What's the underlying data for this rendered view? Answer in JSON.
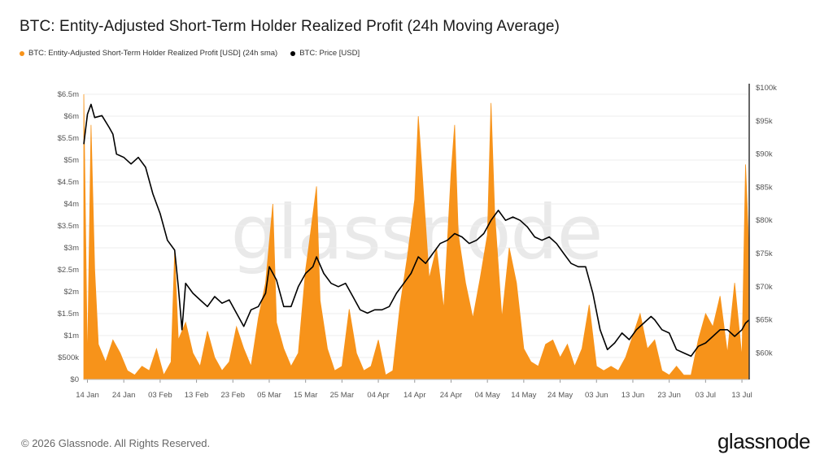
{
  "title": "BTC: Entity-Adjusted Short-Term Holder Realized Profit (24h Moving Average)",
  "footer": "© 2026 Glassnode. All Rights Reserved.",
  "brand": "glassnode",
  "watermark": "glassnode",
  "colors": {
    "profit": "#f7931a",
    "price": "#000000",
    "grid": "#eeeeee",
    "axis": "#333333"
  },
  "chart_data": {
    "type": "area",
    "legend_placement": "top-left",
    "grid": true,
    "x_ticks": [
      "14 Jan",
      "24 Jan",
      "03 Feb",
      "13 Feb",
      "23 Feb",
      "05 Mar",
      "15 Mar",
      "25 Mar",
      "04 Apr",
      "14 Apr",
      "24 Apr",
      "04 May",
      "14 May",
      "24 May",
      "03 Jun",
      "13 Jun",
      "23 Jun",
      "03 Jul",
      "13 Jul"
    ],
    "x_range": [
      "2026-01-13",
      "2026-07-15"
    ],
    "y_left": {
      "ticks": [
        "$0",
        "$500k",
        "$1m",
        "$1.5m",
        "$2m",
        "$2.5m",
        "$3m",
        "$3.5m",
        "$4m",
        "$4.5m",
        "$5m",
        "$5.5m",
        "$6m",
        "$6.5m"
      ],
      "range": [
        0,
        6500000
      ]
    },
    "y_right": {
      "ticks": [
        "$60k",
        "$65k",
        "$70k",
        "$75k",
        "$80k",
        "$85k",
        "$90k",
        "$95k",
        "$100k"
      ],
      "range": [
        56000,
        100000
      ]
    },
    "series": [
      {
        "name": "BTC: Entity-Adjusted Short-Term Holder Realized Profit [USD] (24h sma)",
        "axis": "left",
        "points": [
          [
            "2026-01-13",
            6500000
          ],
          [
            "2026-01-14",
            300000
          ],
          [
            "2026-01-15",
            5800000
          ],
          [
            "2026-01-16",
            2500000
          ],
          [
            "2026-01-17",
            800000
          ],
          [
            "2026-01-19",
            400000
          ],
          [
            "2026-01-21",
            900000
          ],
          [
            "2026-01-23",
            600000
          ],
          [
            "2026-01-25",
            200000
          ],
          [
            "2026-01-27",
            100000
          ],
          [
            "2026-01-29",
            300000
          ],
          [
            "2026-01-31",
            200000
          ],
          [
            "2026-02-02",
            700000
          ],
          [
            "2026-02-04",
            100000
          ],
          [
            "2026-02-06",
            400000
          ],
          [
            "2026-02-07",
            2900000
          ],
          [
            "2026-02-08",
            900000
          ],
          [
            "2026-02-10",
            1300000
          ],
          [
            "2026-02-12",
            600000
          ],
          [
            "2026-02-14",
            300000
          ],
          [
            "2026-02-16",
            1100000
          ],
          [
            "2026-02-18",
            500000
          ],
          [
            "2026-02-20",
            200000
          ],
          [
            "2026-02-22",
            400000
          ],
          [
            "2026-02-24",
            1200000
          ],
          [
            "2026-02-26",
            700000
          ],
          [
            "2026-02-28",
            300000
          ],
          [
            "2026-03-02",
            1400000
          ],
          [
            "2026-03-04",
            2200000
          ],
          [
            "2026-03-06",
            4000000
          ],
          [
            "2026-03-07",
            1300000
          ],
          [
            "2026-03-09",
            700000
          ],
          [
            "2026-03-11",
            300000
          ],
          [
            "2026-03-13",
            600000
          ],
          [
            "2026-03-15",
            2500000
          ],
          [
            "2026-03-16",
            3100000
          ],
          [
            "2026-03-18",
            4400000
          ],
          [
            "2026-03-19",
            1800000
          ],
          [
            "2026-03-21",
            700000
          ],
          [
            "2026-03-23",
            200000
          ],
          [
            "2026-03-25",
            300000
          ],
          [
            "2026-03-27",
            1600000
          ],
          [
            "2026-03-29",
            600000
          ],
          [
            "2026-03-31",
            200000
          ],
          [
            "2026-04-02",
            300000
          ],
          [
            "2026-04-04",
            900000
          ],
          [
            "2026-04-06",
            100000
          ],
          [
            "2026-04-08",
            200000
          ],
          [
            "2026-04-10",
            1700000
          ],
          [
            "2026-04-12",
            2800000
          ],
          [
            "2026-04-14",
            4100000
          ],
          [
            "2026-04-15",
            6000000
          ],
          [
            "2026-04-16",
            4800000
          ],
          [
            "2026-04-18",
            2300000
          ],
          [
            "2026-04-20",
            3000000
          ],
          [
            "2026-04-22",
            1600000
          ],
          [
            "2026-04-24",
            4700000
          ],
          [
            "2026-04-25",
            5800000
          ],
          [
            "2026-04-26",
            3300000
          ],
          [
            "2026-04-28",
            2200000
          ],
          [
            "2026-04-30",
            1400000
          ],
          [
            "2026-05-02",
            2300000
          ],
          [
            "2026-05-04",
            3300000
          ],
          [
            "2026-05-05",
            6300000
          ],
          [
            "2026-05-06",
            3800000
          ],
          [
            "2026-05-08",
            1400000
          ],
          [
            "2026-05-10",
            3000000
          ],
          [
            "2026-05-12",
            2200000
          ],
          [
            "2026-05-14",
            700000
          ],
          [
            "2026-05-16",
            400000
          ],
          [
            "2026-05-18",
            300000
          ],
          [
            "2026-05-20",
            800000
          ],
          [
            "2026-05-22",
            900000
          ],
          [
            "2026-05-24",
            500000
          ],
          [
            "2026-05-26",
            800000
          ],
          [
            "2026-05-28",
            300000
          ],
          [
            "2026-05-30",
            700000
          ],
          [
            "2026-06-01",
            1700000
          ],
          [
            "2026-06-03",
            300000
          ],
          [
            "2026-06-05",
            200000
          ],
          [
            "2026-06-07",
            300000
          ],
          [
            "2026-06-09",
            200000
          ],
          [
            "2026-06-11",
            500000
          ],
          [
            "2026-06-13",
            1000000
          ],
          [
            "2026-06-15",
            1500000
          ],
          [
            "2026-06-17",
            700000
          ],
          [
            "2026-06-19",
            900000
          ],
          [
            "2026-06-21",
            200000
          ],
          [
            "2026-06-23",
            100000
          ],
          [
            "2026-06-25",
            300000
          ],
          [
            "2026-06-27",
            100000
          ],
          [
            "2026-06-29",
            100000
          ],
          [
            "2026-07-01",
            900000
          ],
          [
            "2026-07-03",
            1500000
          ],
          [
            "2026-07-05",
            1200000
          ],
          [
            "2026-07-07",
            1900000
          ],
          [
            "2026-07-09",
            600000
          ],
          [
            "2026-07-11",
            2200000
          ],
          [
            "2026-07-13",
            500000
          ],
          [
            "2026-07-14",
            4900000
          ],
          [
            "2026-07-15",
            2800000
          ]
        ]
      },
      {
        "name": "BTC: Price [USD]",
        "axis": "right",
        "points": [
          [
            "2026-01-13",
            91500
          ],
          [
            "2026-01-14",
            96000
          ],
          [
            "2026-01-15",
            97500
          ],
          [
            "2026-01-16",
            95500
          ],
          [
            "2026-01-18",
            95800
          ],
          [
            "2026-01-20",
            94000
          ],
          [
            "2026-01-21",
            93000
          ],
          [
            "2026-01-22",
            90000
          ],
          [
            "2026-01-24",
            89500
          ],
          [
            "2026-01-26",
            88500
          ],
          [
            "2026-01-28",
            89500
          ],
          [
            "2026-01-30",
            88000
          ],
          [
            "2026-02-01",
            84000
          ],
          [
            "2026-02-03",
            81000
          ],
          [
            "2026-02-05",
            77000
          ],
          [
            "2026-02-07",
            75500
          ],
          [
            "2026-02-08",
            70000
          ],
          [
            "2026-02-09",
            63500
          ],
          [
            "2026-02-10",
            70500
          ],
          [
            "2026-02-12",
            69000
          ],
          [
            "2026-02-14",
            68000
          ],
          [
            "2026-02-16",
            67000
          ],
          [
            "2026-02-18",
            68500
          ],
          [
            "2026-02-20",
            67500
          ],
          [
            "2026-02-22",
            68000
          ],
          [
            "2026-02-24",
            66000
          ],
          [
            "2026-02-26",
            64000
          ],
          [
            "2026-02-28",
            66500
          ],
          [
            "2026-03-02",
            67000
          ],
          [
            "2026-03-04",
            69000
          ],
          [
            "2026-03-05",
            73000
          ],
          [
            "2026-03-07",
            71000
          ],
          [
            "2026-03-09",
            67000
          ],
          [
            "2026-03-11",
            67000
          ],
          [
            "2026-03-13",
            70000
          ],
          [
            "2026-03-15",
            72000
          ],
          [
            "2026-03-17",
            73000
          ],
          [
            "2026-03-18",
            74500
          ],
          [
            "2026-03-20",
            72000
          ],
          [
            "2026-03-22",
            70500
          ],
          [
            "2026-03-24",
            70000
          ],
          [
            "2026-03-26",
            70500
          ],
          [
            "2026-03-28",
            68500
          ],
          [
            "2026-03-30",
            66500
          ],
          [
            "2026-04-01",
            66000
          ],
          [
            "2026-04-03",
            66500
          ],
          [
            "2026-04-05",
            66500
          ],
          [
            "2026-04-07",
            67000
          ],
          [
            "2026-04-09",
            69000
          ],
          [
            "2026-04-11",
            70500
          ],
          [
            "2026-04-13",
            72000
          ],
          [
            "2026-04-15",
            74500
          ],
          [
            "2026-04-17",
            73500
          ],
          [
            "2026-04-19",
            75000
          ],
          [
            "2026-04-21",
            76500
          ],
          [
            "2026-04-23",
            77000
          ],
          [
            "2026-04-25",
            78000
          ],
          [
            "2026-04-27",
            77500
          ],
          [
            "2026-04-29",
            76500
          ],
          [
            "2026-05-01",
            77000
          ],
          [
            "2026-05-03",
            78000
          ],
          [
            "2026-05-05",
            80000
          ],
          [
            "2026-05-07",
            81500
          ],
          [
            "2026-05-09",
            80000
          ],
          [
            "2026-05-11",
            80500
          ],
          [
            "2026-05-13",
            80000
          ],
          [
            "2026-05-15",
            79000
          ],
          [
            "2026-05-17",
            77500
          ],
          [
            "2026-05-19",
            77000
          ],
          [
            "2026-05-21",
            77500
          ],
          [
            "2026-05-23",
            76500
          ],
          [
            "2026-05-25",
            75000
          ],
          [
            "2026-05-27",
            73500
          ],
          [
            "2026-05-29",
            73000
          ],
          [
            "2026-05-31",
            73000
          ],
          [
            "2026-06-02",
            69000
          ],
          [
            "2026-06-04",
            63500
          ],
          [
            "2026-06-06",
            60500
          ],
          [
            "2026-06-08",
            61500
          ],
          [
            "2026-06-10",
            63000
          ],
          [
            "2026-06-12",
            62000
          ],
          [
            "2026-06-14",
            63500
          ],
          [
            "2026-06-16",
            64500
          ],
          [
            "2026-06-18",
            65500
          ],
          [
            "2026-06-19",
            65000
          ],
          [
            "2026-06-21",
            63500
          ],
          [
            "2026-06-23",
            63000
          ],
          [
            "2026-06-25",
            60500
          ],
          [
            "2026-06-27",
            60000
          ],
          [
            "2026-06-29",
            59500
          ],
          [
            "2026-07-01",
            61000
          ],
          [
            "2026-07-03",
            61500
          ],
          [
            "2026-07-05",
            62500
          ],
          [
            "2026-07-07",
            63500
          ],
          [
            "2026-07-09",
            63500
          ],
          [
            "2026-07-11",
            62500
          ],
          [
            "2026-07-13",
            63500
          ],
          [
            "2026-07-14",
            64500
          ],
          [
            "2026-07-15",
            65000
          ]
        ]
      }
    ]
  }
}
